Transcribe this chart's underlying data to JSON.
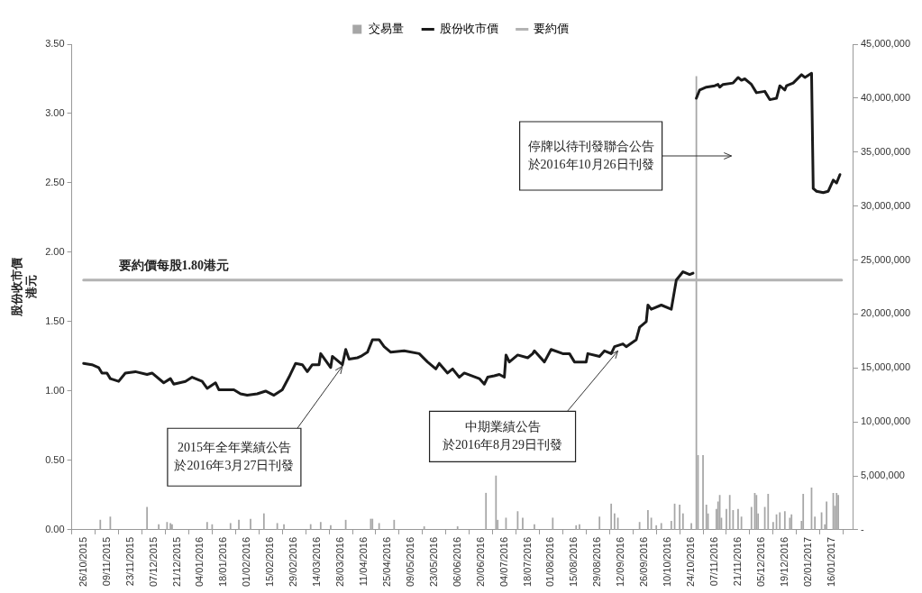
{
  "chart_data": {
    "type": "line",
    "legend": "top",
    "grid": false,
    "marker": "none",
    "line_style": "solid",
    "ylabel": "股份收市價港元",
    "xlim": [
      "2015-10-26",
      "2017-01-22"
    ],
    "xticks": [
      {
        "value": "2015-10-26",
        "label": "26/10/2015"
      },
      {
        "value": "2015-11-09",
        "label": "09/11/2015"
      },
      {
        "value": "2015-11-23",
        "label": "23/11/2015"
      },
      {
        "value": "2015-12-07",
        "label": "07/12/2015"
      },
      {
        "value": "2015-12-21",
        "label": "21/12/2015"
      },
      {
        "value": "2016-01-04",
        "label": "04/01/2016"
      },
      {
        "value": "2016-01-18",
        "label": "18/01/2016"
      },
      {
        "value": "2016-02-01",
        "label": "01/02/2016"
      },
      {
        "value": "2016-02-15",
        "label": "15/02/2016"
      },
      {
        "value": "2016-02-29",
        "label": "29/02/2016"
      },
      {
        "value": "2016-03-14",
        "label": "14/03/2016"
      },
      {
        "value": "2016-03-28",
        "label": "28/03/2016"
      },
      {
        "value": "2016-04-11",
        "label": "11/04/2016"
      },
      {
        "value": "2016-04-25",
        "label": "25/04/2016"
      },
      {
        "value": "2016-05-09",
        "label": "09/05/2016"
      },
      {
        "value": "2016-05-23",
        "label": "23/05/2016"
      },
      {
        "value": "2016-06-06",
        "label": "06/06/2016"
      },
      {
        "value": "2016-06-20",
        "label": "20/06/2016"
      },
      {
        "value": "2016-07-04",
        "label": "04/07/2016"
      },
      {
        "value": "2016-07-18",
        "label": "18/07/2016"
      },
      {
        "value": "2016-08-01",
        "label": "01/08/2016"
      },
      {
        "value": "2016-08-15",
        "label": "15/08/2016"
      },
      {
        "value": "2016-08-29",
        "label": "29/08/2016"
      },
      {
        "value": "2016-09-12",
        "label": "12/09/2016"
      },
      {
        "value": "2016-09-26",
        "label": "26/09/2016"
      },
      {
        "value": "2016-10-10",
        "label": "10/10/2016"
      },
      {
        "value": "2016-10-24",
        "label": "24/10/2016"
      },
      {
        "value": "2016-11-07",
        "label": "07/11/2016"
      },
      {
        "value": "2016-11-21",
        "label": "21/11/2016"
      },
      {
        "value": "2016-12-05",
        "label": "05/12/2016"
      },
      {
        "value": "2016-12-19",
        "label": "19/12/2016"
      },
      {
        "value": "2017-01-02",
        "label": "02/01/2017"
      },
      {
        "value": "2017-01-16",
        "label": "16/01/2017"
      }
    ],
    "ylim": [
      0,
      3.5
    ],
    "yticks": [
      {
        "value": 0,
        "label": "0.00"
      },
      {
        "value": 0.5,
        "label": "0.50"
      },
      {
        "value": 1,
        "label": "1.00"
      },
      {
        "value": 1.5,
        "label": "1.50"
      },
      {
        "value": 2,
        "label": "2.00"
      },
      {
        "value": 2.5,
        "label": "2.50"
      },
      {
        "value": 3,
        "label": "3.00"
      },
      {
        "value": 3.5,
        "label": "3.50"
      }
    ],
    "y2lim": [
      0,
      45000000
    ],
    "y2ticks": [
      {
        "value": 0,
        "label": "-"
      },
      {
        "value": 5000000,
        "label": "5,000,000"
      },
      {
        "value": 10000000,
        "label": "10,000,000"
      },
      {
        "value": 15000000,
        "label": "15,000,000"
      },
      {
        "value": 20000000,
        "label": "20,000,000"
      },
      {
        "value": 25000000,
        "label": "25,000,000"
      },
      {
        "value": 30000000,
        "label": "30,000,000"
      },
      {
        "value": 35000000,
        "label": "35,000,000"
      },
      {
        "value": 40000000,
        "label": "40,000,000"
      },
      {
        "value": 45000000,
        "label": "45,000,000"
      }
    ],
    "series": [
      {
        "name": "交易量",
        "type": "bar",
        "axis": "y2",
        "color": "#a6a6a6",
        "x": [
          "2015-11-05",
          "2015-11-11",
          "2015-12-03",
          "2015-12-10",
          "2015-12-15",
          "2015-12-17",
          "2015-12-18",
          "2016-01-08",
          "2016-01-11",
          "2016-01-22",
          "2016-01-27",
          "2016-02-03",
          "2016-02-11",
          "2016-02-19",
          "2016-02-23",
          "2016-03-10",
          "2016-03-16",
          "2016-03-22",
          "2016-03-31",
          "2016-04-15",
          "2016-04-16",
          "2016-04-20",
          "2016-04-29",
          "2016-05-17",
          "2016-06-06",
          "2016-06-23",
          "2016-06-29",
          "2016-06-30",
          "2016-07-05",
          "2016-07-12",
          "2016-07-15",
          "2016-07-22",
          "2016-08-02",
          "2016-08-16",
          "2016-08-18",
          "2016-08-30",
          "2016-09-06",
          "2016-09-08",
          "2016-09-10",
          "2016-09-23",
          "2016-09-28",
          "2016-09-30",
          "2016-10-03",
          "2016-10-06",
          "2016-10-12",
          "2016-10-14",
          "2016-10-17",
          "2016-10-19",
          "2016-10-24",
          "2016-10-27",
          "2016-10-28",
          "2016-10-31",
          "2016-11-02",
          "2016-11-03",
          "2016-11-08",
          "2016-11-09",
          "2016-11-10",
          "2016-11-11",
          "2016-11-14",
          "2016-11-16",
          "2016-11-18",
          "2016-11-21",
          "2016-11-23",
          "2016-11-29",
          "2016-12-01",
          "2016-12-02",
          "2016-12-03",
          "2016-12-07",
          "2016-12-09",
          "2016-12-12",
          "2016-12-14",
          "2016-12-16",
          "2016-12-19",
          "2016-12-22",
          "2016-12-23",
          "2016-12-29",
          "2016-12-30",
          "2017-01-04",
          "2017-01-06",
          "2017-01-10",
          "2017-01-12",
          "2017-01-13",
          "2017-01-17",
          "2017-01-18",
          "2017-01-19",
          "2017-01-20"
        ],
        "values": [
          900000,
          1200000,
          2100000,
          500000,
          700000,
          600000,
          500000,
          700000,
          500000,
          600000,
          900000,
          1000000,
          1500000,
          600000,
          500000,
          500000,
          700000,
          400000,
          900000,
          1000000,
          1000000,
          600000,
          900000,
          300000,
          300000,
          3400000,
          5000000,
          900000,
          1100000,
          1700000,
          1100000,
          500000,
          1100000,
          400000,
          500000,
          1200000,
          2400000,
          1500000,
          1100000,
          700000,
          1800000,
          1100000,
          400000,
          600000,
          800000,
          2400000,
          2300000,
          1500000,
          600000,
          42000000,
          6900000,
          6900000,
          2300000,
          1500000,
          1900000,
          2600000,
          3200000,
          1100000,
          1900000,
          3200000,
          1800000,
          1900000,
          1200000,
          2100000,
          3400000,
          3200000,
          1500000,
          2100000,
          3300000,
          700000,
          1400000,
          1600000,
          1700000,
          1100000,
          1400000,
          800000,
          3300000,
          3900000,
          1200000,
          1600000,
          500000,
          2600000,
          3400000,
          2200000,
          3400000,
          3200000
        ]
      },
      {
        "name": "股份收市價",
        "color": "#1a1a1a",
        "x": [
          "2015-10-26",
          "2015-10-31",
          "2015-11-04",
          "2015-11-06",
          "2015-11-09",
          "2015-11-11",
          "2015-11-16",
          "2015-11-20",
          "2015-11-26",
          "2015-12-03",
          "2015-12-06",
          "2015-12-13",
          "2015-12-17",
          "2015-12-19",
          "2015-12-26",
          "2015-12-30",
          "2016-01-05",
          "2016-01-08",
          "2016-01-13",
          "2016-01-15",
          "2016-01-24",
          "2016-01-28",
          "2016-02-01",
          "2016-02-07",
          "2016-02-12",
          "2016-02-17",
          "2016-02-22",
          "2016-02-26",
          "2016-03-01",
          "2016-03-05",
          "2016-03-08",
          "2016-03-11",
          "2016-03-15",
          "2016-03-16",
          "2016-03-22",
          "2016-03-23",
          "2016-03-29",
          "2016-03-31",
          "2016-04-02",
          "2016-04-07",
          "2016-04-09",
          "2016-04-13",
          "2016-04-16",
          "2016-04-20",
          "2016-04-23",
          "2016-04-27",
          "2016-05-05",
          "2016-05-14",
          "2016-05-19",
          "2016-05-24",
          "2016-05-26",
          "2016-05-31",
          "2016-06-03",
          "2016-06-07",
          "2016-06-10",
          "2016-06-19",
          "2016-06-22",
          "2016-06-24",
          "2016-06-28",
          "2016-07-01",
          "2016-07-04",
          "2016-07-05",
          "2016-07-07",
          "2016-07-12",
          "2016-07-18",
          "2016-07-21",
          "2016-07-22",
          "2016-07-28",
          "2016-08-01",
          "2016-08-08",
          "2016-08-12",
          "2016-08-15",
          "2016-08-22",
          "2016-08-23",
          "2016-08-30",
          "2016-09-02",
          "2016-09-06",
          "2016-09-08",
          "2016-09-13",
          "2016-09-15",
          "2016-09-21",
          "2016-09-23",
          "2016-09-27",
          "2016-09-28",
          "2016-09-30",
          "2016-10-06",
          "2016-10-12",
          "2016-10-15",
          "2016-10-19",
          "2016-10-23",
          "2016-10-25",
          "2016-10-26",
          "2016-10-27",
          "2016-10-29",
          "2016-11-02",
          "2016-11-07",
          "2016-11-09",
          "2016-11-10",
          "2016-11-12",
          "2016-11-18",
          "2016-11-21",
          "2016-11-23",
          "2016-11-25",
          "2016-11-29",
          "2016-12-02",
          "2016-12-07",
          "2016-12-10",
          "2016-12-14",
          "2016-12-16",
          "2016-12-19",
          "2016-12-20",
          "2016-12-24",
          "2016-12-29",
          "2016-12-31",
          "2017-01-04",
          "2017-01-05",
          "2017-01-07",
          "2017-01-11",
          "2017-01-14",
          "2017-01-17",
          "2017-01-19",
          "2017-01-21"
        ],
        "values": [
          1.2,
          1.19,
          1.17,
          1.13,
          1.13,
          1.09,
          1.07,
          1.13,
          1.14,
          1.12,
          1.13,
          1.06,
          1.09,
          1.05,
          1.07,
          1.1,
          1.07,
          1.02,
          1.06,
          1.01,
          1.01,
          0.98,
          0.97,
          0.98,
          1.0,
          0.97,
          1.01,
          1.1,
          1.2,
          1.19,
          1.14,
          1.19,
          1.19,
          1.27,
          1.17,
          1.25,
          1.19,
          1.3,
          1.23,
          1.24,
          1.25,
          1.28,
          1.37,
          1.37,
          1.32,
          1.28,
          1.29,
          1.27,
          1.21,
          1.16,
          1.2,
          1.13,
          1.16,
          1.1,
          1.13,
          1.09,
          1.05,
          1.1,
          1.11,
          1.12,
          1.1,
          1.26,
          1.21,
          1.26,
          1.24,
          1.27,
          1.29,
          1.21,
          1.3,
          1.27,
          1.27,
          1.21,
          1.21,
          1.27,
          1.25,
          1.29,
          1.27,
          1.32,
          1.34,
          1.32,
          1.37,
          1.46,
          1.5,
          1.62,
          1.59,
          1.62,
          1.59,
          1.8,
          1.86,
          1.84,
          1.85,
          null,
          3.11,
          3.17,
          3.19,
          3.2,
          3.21,
          3.19,
          3.21,
          3.22,
          3.26,
          3.24,
          3.25,
          3.21,
          3.15,
          3.16,
          3.1,
          3.11,
          3.2,
          3.17,
          3.2,
          3.22,
          3.28,
          3.26,
          3.29,
          2.46,
          2.44,
          2.43,
          2.44,
          2.52,
          2.5,
          2.56
        ]
      },
      {
        "name": "要約價",
        "color": "#b3b3b3",
        "x": [
          "2015-10-26",
          "2017-01-22"
        ],
        "values": [
          1.8,
          1.8
        ]
      }
    ],
    "annotations": [
      {
        "text": "要約價每股1.80港元",
        "x": "2015-12-19",
        "y": 1.8
      },
      {
        "text": "2015年全年業績公告於2016年3月27日刊發",
        "x": "2016-03-29",
        "y": 1.18
      },
      {
        "text": "中期業績公告於2016年8月29日刊發",
        "x": "2016-09-10",
        "y": 1.29
      },
      "停牌以待刊發聯合公告於2016年10月26日刊發"
    ]
  }
}
